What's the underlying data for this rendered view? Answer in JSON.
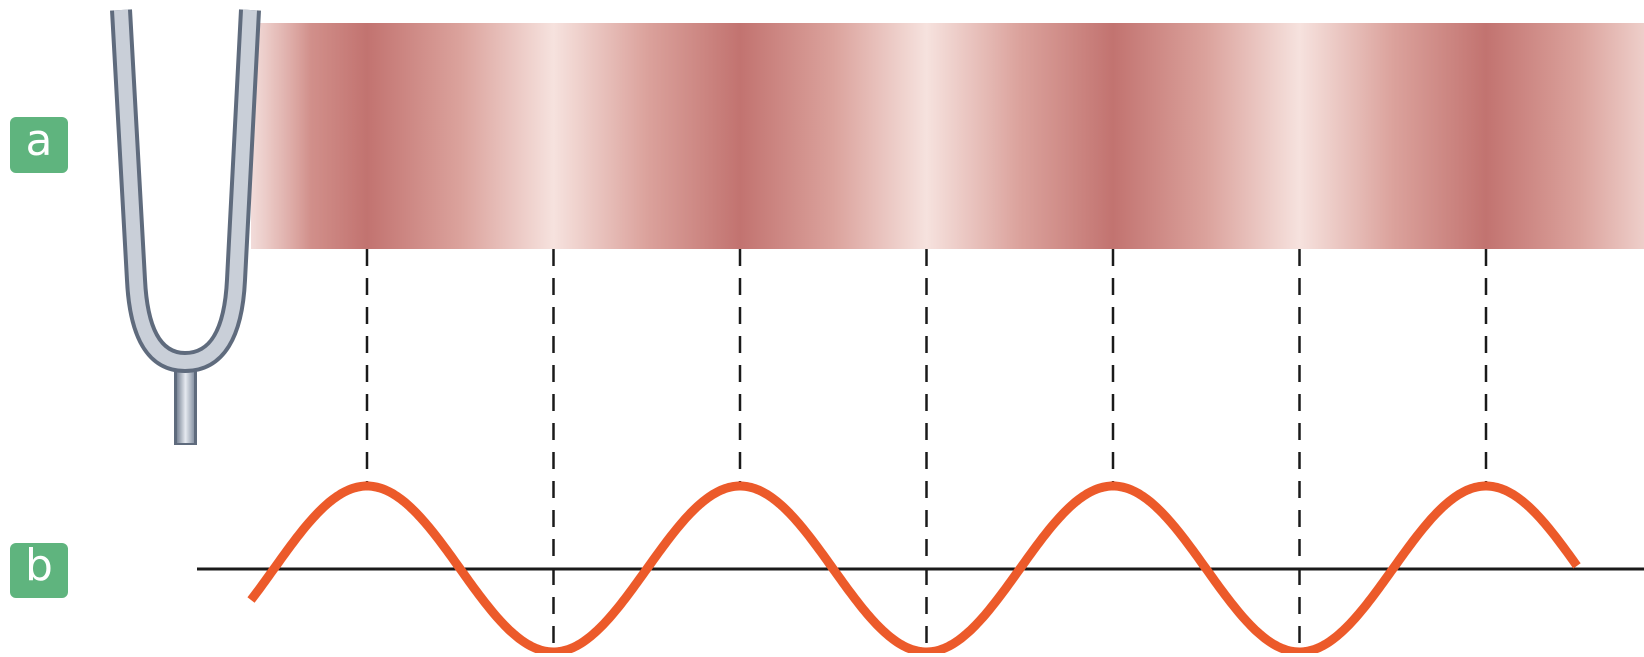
{
  "labels": {
    "a": "a",
    "b": "b"
  }
}
